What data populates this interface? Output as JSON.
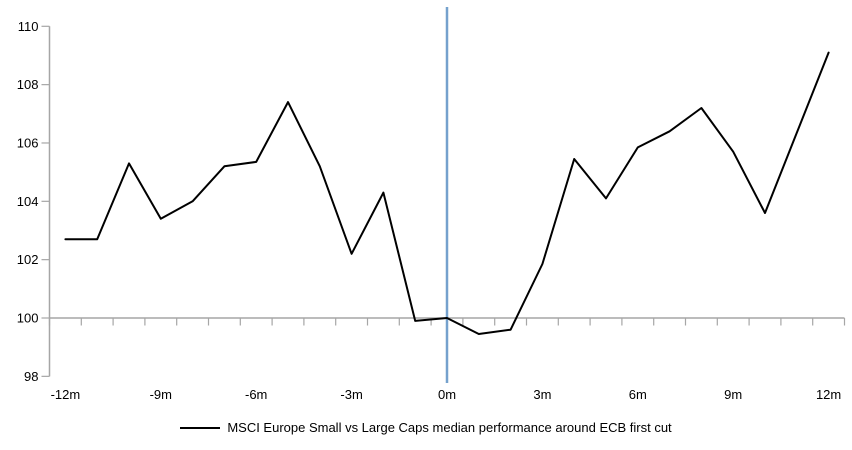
{
  "chart_data": {
    "type": "line",
    "categories": [
      "-12m",
      "-11m",
      "-10m",
      "-9m",
      "-8m",
      "-7m",
      "-6m",
      "-5m",
      "-4m",
      "-3m",
      "-2m",
      "-1m",
      "0m",
      "1m",
      "2m",
      "3m",
      "4m",
      "5m",
      "6m",
      "7m",
      "8m",
      "9m",
      "10m",
      "11m",
      "12m"
    ],
    "x_months": [
      -12,
      -11,
      -10,
      -9,
      -8,
      -7,
      -6,
      -5,
      -4,
      -3,
      -2,
      -1,
      0,
      1,
      2,
      3,
      4,
      5,
      6,
      7,
      8,
      9,
      10,
      11,
      12
    ],
    "series": [
      {
        "name": "MSCI Europe Small vs Large Caps median performance around ECB first cut",
        "values": [
          102.7,
          102.7,
          105.3,
          103.4,
          104.0,
          105.2,
          105.35,
          107.4,
          105.2,
          102.2,
          104.3,
          99.9,
          100.0,
          99.45,
          99.6,
          101.85,
          105.45,
          104.1,
          105.85,
          106.4,
          107.2,
          105.7,
          103.6,
          106.35,
          109.1
        ]
      }
    ],
    "xlabel": "",
    "ylabel": "",
    "ylim": [
      98,
      110
    ],
    "yticks": [
      98,
      100,
      102,
      104,
      106,
      108,
      110
    ],
    "xtick_labels": [
      "-12m",
      "-9m",
      "-6m",
      "-3m",
      "0m",
      "3m",
      "6m",
      "9m",
      "12m"
    ],
    "xtick_months": [
      -12,
      -9,
      -6,
      -3,
      0,
      3,
      6,
      9,
      12
    ],
    "baseline_value": 100,
    "event_line_month": 0,
    "grid": false,
    "legend_position": "bottom",
    "colors": {
      "series_line": "#000000",
      "event_line": "#75a1cd",
      "axis": "#a6a6a6",
      "text": "#000000"
    }
  }
}
